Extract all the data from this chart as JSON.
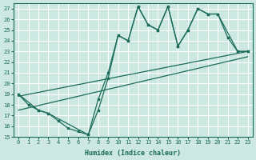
{
  "xlabel": "Humidex (Indice chaleur)",
  "bg_color": "#cce8e0",
  "line_color": "#1a6b5a",
  "grid_color": "#ffffff",
  "xlim": [
    -0.5,
    23.5
  ],
  "ylim": [
    15,
    27.5
  ],
  "line1_x": [
    0,
    1,
    2,
    3,
    4,
    5,
    6,
    7,
    8,
    9,
    10,
    11,
    12,
    13,
    14,
    15,
    16,
    17,
    18,
    19,
    20,
    21,
    22,
    23
  ],
  "line1_y": [
    19,
    18,
    17.5,
    17.2,
    16.5,
    15.8,
    15.5,
    15.2,
    17.5,
    20.5,
    24.5,
    24.0,
    27.2,
    25.5,
    25.0,
    27.2,
    23.5,
    25.0,
    27.0,
    26.5,
    26.5,
    24.3,
    23.0,
    23.0
  ],
  "line2_x": [
    0,
    2,
    3,
    7,
    8,
    9,
    10,
    11,
    12,
    13,
    14,
    15,
    16,
    17,
    18,
    19,
    20,
    22,
    23
  ],
  "line2_y": [
    19,
    17.5,
    17.2,
    15.2,
    18.5,
    21.0,
    24.5,
    24.0,
    27.2,
    25.5,
    25.0,
    27.2,
    23.5,
    25.0,
    27.0,
    26.5,
    26.5,
    23.0,
    23.0
  ],
  "trend1_x": [
    0,
    23
  ],
  "trend1_y": [
    18.8,
    23.0
  ],
  "trend2_x": [
    0,
    23
  ],
  "trend2_y": [
    17.5,
    22.5
  ]
}
